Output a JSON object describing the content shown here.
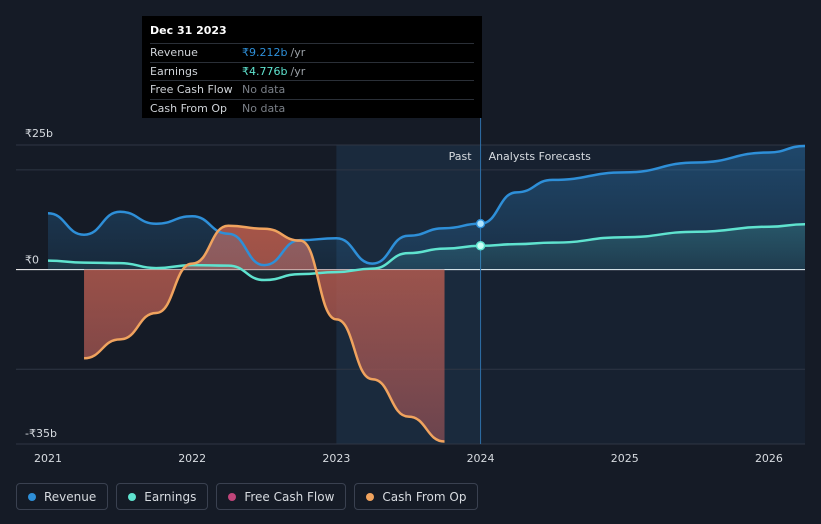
{
  "tooltip": {
    "date": "Dec 31 2023",
    "rows": [
      {
        "label": "Revenue",
        "value": "₹9.212b",
        "unit": "/yr",
        "color": "#2e8fd8"
      },
      {
        "label": "Earnings",
        "value": "₹4.776b",
        "unit": "/yr",
        "color": "#5fe3cf"
      },
      {
        "label": "Free Cash Flow",
        "value": "No data",
        "unit": "",
        "color": "#7a7f87"
      },
      {
        "label": "Cash From Op",
        "value": "No data",
        "unit": "",
        "color": "#7a7f87"
      }
    ]
  },
  "labels": {
    "past": "Past",
    "forecast": "Analysts Forecasts"
  },
  "legend": [
    {
      "label": "Revenue",
      "color": "#2e8fd8"
    },
    {
      "label": "Earnings",
      "color": "#5fe3cf"
    },
    {
      "label": "Free Cash Flow",
      "color": "#c0457a"
    },
    {
      "label": "Cash From Op",
      "color": "#f0a35e"
    }
  ],
  "chart_data": {
    "type": "line",
    "title": "",
    "xlabel": "",
    "ylabel": "",
    "x_ticks": [
      "2021",
      "2022",
      "2023",
      "2024",
      "2025",
      "2026"
    ],
    "y_ticks": [
      {
        "label": "₹25b",
        "value": 25
      },
      {
        "label": "₹0",
        "value": 0
      },
      {
        "label": "-₹35b",
        "value": -35
      }
    ],
    "ylim": [
      -35,
      25
    ],
    "xlim": [
      2021.0,
      2026.25
    ],
    "units": "₹ billions (INR)",
    "past_forecast_split": 2024.0,
    "highlight_start": 2023.0,
    "series": [
      {
        "name": "Revenue",
        "color": "#2e8fd8",
        "points": [
          [
            2021.0,
            11.3
          ],
          [
            2021.25,
            7.0
          ],
          [
            2021.5,
            11.6
          ],
          [
            2021.75,
            9.2
          ],
          [
            2022.0,
            10.7
          ],
          [
            2022.25,
            7.2
          ],
          [
            2022.5,
            0.9
          ],
          [
            2022.75,
            5.9
          ],
          [
            2023.0,
            6.3
          ],
          [
            2023.25,
            1.2
          ],
          [
            2023.5,
            6.8
          ],
          [
            2023.75,
            8.3
          ],
          [
            2024.0,
            9.212
          ],
          [
            2024.25,
            15.5
          ],
          [
            2024.5,
            18.0
          ],
          [
            2025.0,
            19.5
          ],
          [
            2025.5,
            21.5
          ],
          [
            2026.0,
            23.5
          ],
          [
            2026.25,
            24.8
          ]
        ]
      },
      {
        "name": "Earnings",
        "color": "#5fe3cf",
        "points": [
          [
            2021.0,
            1.8
          ],
          [
            2021.25,
            1.4
          ],
          [
            2021.5,
            1.3
          ],
          [
            2021.75,
            0.3
          ],
          [
            2022.0,
            0.9
          ],
          [
            2022.25,
            0.8
          ],
          [
            2022.5,
            -2.1
          ],
          [
            2022.75,
            -0.9
          ],
          [
            2023.0,
            -0.5
          ],
          [
            2023.25,
            0.2
          ],
          [
            2023.5,
            3.3
          ],
          [
            2023.75,
            4.2
          ],
          [
            2024.0,
            4.776
          ],
          [
            2024.25,
            5.1
          ],
          [
            2024.5,
            5.4
          ],
          [
            2025.0,
            6.5
          ],
          [
            2025.5,
            7.6
          ],
          [
            2026.0,
            8.6
          ],
          [
            2026.25,
            9.1
          ]
        ]
      },
      {
        "name": "Cash From Op",
        "color": "#f0a35e",
        "points": [
          [
            2021.25,
            -17.8
          ],
          [
            2021.5,
            -14.0
          ],
          [
            2021.75,
            -8.7
          ],
          [
            2022.0,
            1.2
          ],
          [
            2022.25,
            8.8
          ],
          [
            2022.5,
            8.2
          ],
          [
            2022.75,
            5.8
          ],
          [
            2023.0,
            -10.0
          ],
          [
            2023.25,
            -22.0
          ],
          [
            2023.5,
            -29.5
          ],
          [
            2023.75,
            -34.5
          ]
        ]
      },
      {
        "name": "Free Cash Flow",
        "color": "#c0457a",
        "fill_only": true,
        "points": [
          [
            2021.25,
            -17.8
          ],
          [
            2021.5,
            -14.0
          ],
          [
            2021.75,
            -8.7
          ],
          [
            2022.0,
            1.2
          ],
          [
            2022.25,
            8.8
          ],
          [
            2022.5,
            8.2
          ],
          [
            2022.75,
            5.8
          ],
          [
            2023.0,
            -10.0
          ],
          [
            2023.25,
            -22.0
          ],
          [
            2023.5,
            -29.5
          ],
          [
            2023.75,
            -34.5
          ]
        ]
      }
    ]
  }
}
